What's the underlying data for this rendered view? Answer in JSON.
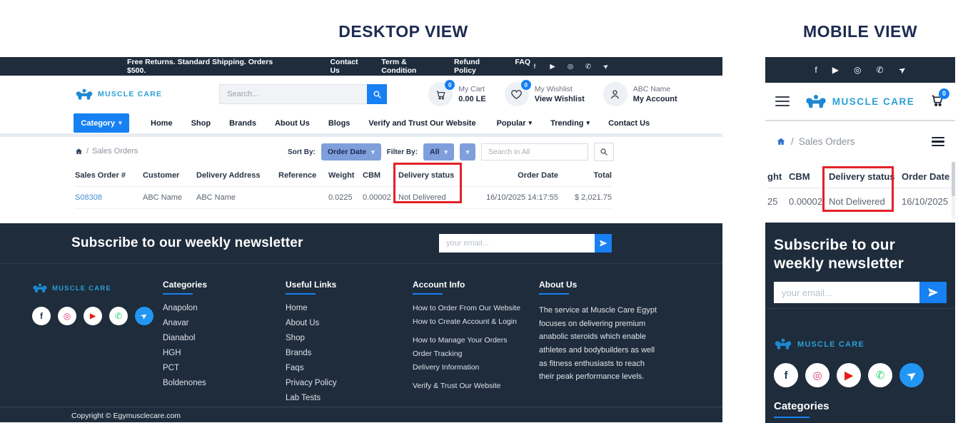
{
  "views": {
    "desktop_title": "DESKTOP VIEW",
    "mobile_title": "MOBILE VIEW"
  },
  "icons": {
    "facebook": "f",
    "youtube": "▶",
    "instagram": "◎",
    "whatsapp": "✆",
    "telegram": "➤",
    "chevron": "▾",
    "slash": "/"
  },
  "colors": {
    "dark_navy": "#1e2c3c",
    "accent_blue": "#1780f3",
    "brand_blue": "#2b9fd6",
    "highlight_red": "#e32229",
    "dropdown_blue": "#7f9fdb",
    "link_blue": "#4a8fd3"
  },
  "desktop": {
    "topbar": {
      "promo": "Free Returns. Standard Shipping. Orders $500.",
      "links": [
        "Contact Us",
        "Term & Condition",
        "Refund Policy",
        "FAQ"
      ]
    },
    "header": {
      "brand": "MUSCLE CARE",
      "search_placeholder": "Search...",
      "cart_label": "My Cart",
      "cart_value": "0.00 LE",
      "cart_badge": "0",
      "wishlist_label": "My Wishlist",
      "wishlist_value": "View Wishlist",
      "wishlist_badge": "0",
      "account_label": "ABC Name",
      "account_value": "My Account"
    },
    "nav": {
      "category": "Category",
      "items": [
        "Home",
        "Shop",
        "Brands",
        "About Us",
        "Blogs",
        "Verify and Trust Our Website",
        "Popular",
        "Trending",
        "Contact Us"
      ]
    },
    "toolbar": {
      "breadcrumb": "Sales Orders",
      "sort_label": "Sort By:",
      "sort_value": "Order Date",
      "filter_label": "Filter By:",
      "filter_value": "All",
      "search_placeholder": "Search in All"
    },
    "table": {
      "headers": [
        "Sales Order #",
        "Customer",
        "Delivery Address",
        "Reference",
        "Weight",
        "CBM",
        "Delivery status",
        "Order Date",
        "Total"
      ],
      "row": [
        "S08308",
        "ABC Name",
        "ABC Name",
        "",
        "0.0225",
        "0.00002",
        "Not Delivered",
        "16/10/2025  14:17:55",
        "$ 2,021.75"
      ]
    },
    "newsletter": {
      "heading": "Subscribe to our weekly newsletter",
      "placeholder": "your email..."
    },
    "footer": {
      "brand": "MUSCLE CARE",
      "categories_title": "Categories",
      "categories": [
        "Anapolon",
        "Anavar",
        "Dianabol",
        "HGH",
        "PCT",
        "Boldenones"
      ],
      "useful_title": "Useful Links",
      "useful": [
        "Home",
        "About Us",
        "Shop",
        "Brands",
        "Faqs",
        "Privacy Policy",
        "Lab Tests"
      ],
      "account_title": "Account Info",
      "account": [
        "How to Order From Our Website",
        "How to Create Account & Login",
        "How to Manage Your Orders",
        "Order Tracking",
        "Delivery Information",
        "Verify & Trust Our Website"
      ],
      "about_title": "About Us",
      "about_text": "The service at Muscle Care Egypt focuses on delivering premium anabolic steroids which enable athletes and bodybuilders as well as fitness enthusiasts to reach their peak performance levels.",
      "copyright": "Copyright © Egymusclecare.com"
    }
  },
  "mobile": {
    "brand": "MUSCLE CARE",
    "cart_badge": "0",
    "breadcrumb": "Sales Orders",
    "table": {
      "headers": [
        "ght",
        "CBM",
        "Delivery status",
        "Order Date"
      ],
      "row": [
        "25",
        "0.00002",
        "Not Delivered",
        "16/10/2025"
      ]
    },
    "newsletter": {
      "heading": "Subscribe to our weekly newsletter",
      "placeholder": "your email..."
    },
    "footer": {
      "brand": "MUSCLE CARE",
      "categories_title": "Categories"
    }
  }
}
